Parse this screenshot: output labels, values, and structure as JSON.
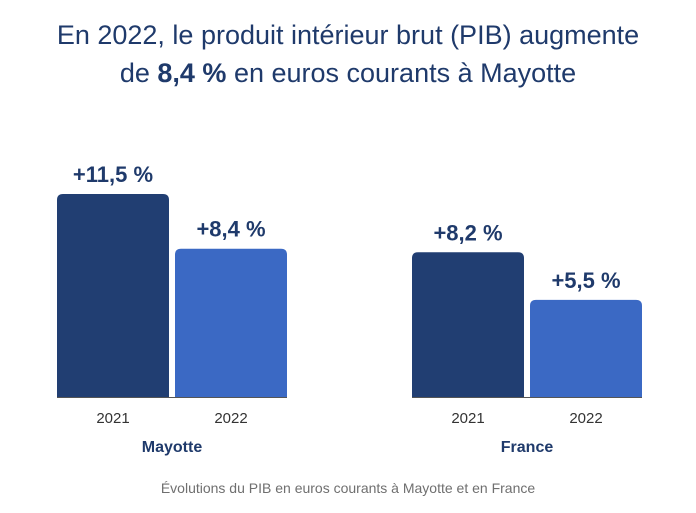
{
  "title": {
    "line1": "En 2022, le produit intérieur brut (PIB) augmente",
    "line2_prefix": "de",
    "line2_bold": "8,4 %",
    "line2_suffix": "en euros courants à Mayotte"
  },
  "caption": "Évolutions du PIB en euros courants à Mayotte et en France",
  "colors": {
    "title": "#1f3a6b",
    "bar_2021": "#213e72",
    "bar_2022": "#3b69c4",
    "group_label": "#1f3a6b",
    "tick_label": "#333333",
    "value_label": "#1f3a6b",
    "axis": "#555555"
  },
  "chart_data": {
    "type": "bar",
    "unit": "%",
    "title": "",
    "xlabel": "",
    "ylabel": "",
    "groups": [
      {
        "name": "Mayotte",
        "bars": [
          {
            "year": "2021",
            "value": 11.5,
            "label": "+11,5 %"
          },
          {
            "year": "2022",
            "value": 8.4,
            "label": "+8,4 %"
          }
        ]
      },
      {
        "name": "France",
        "bars": [
          {
            "year": "2021",
            "value": 8.2,
            "label": "+8,2 %"
          },
          {
            "year": "2022",
            "value": 5.5,
            "label": "+5,5 %"
          }
        ]
      }
    ],
    "grid": false,
    "legend": "none"
  }
}
